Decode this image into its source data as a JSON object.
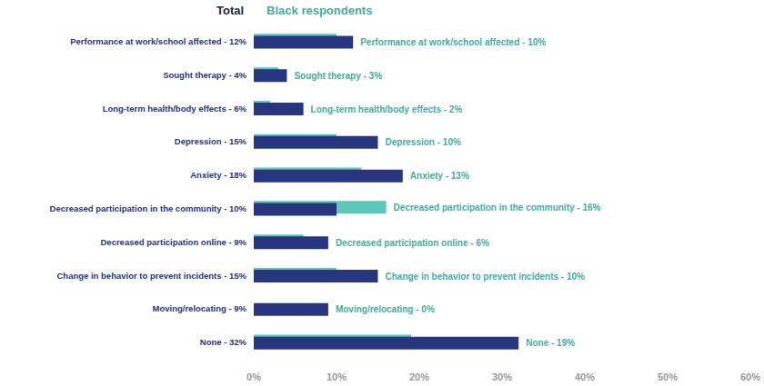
{
  "chart_data": {
    "type": "bar",
    "orientation": "horizontal",
    "categories": [
      "Performance at work/school affected - 12%",
      "Sought therapy - 4%",
      "Long-term health/body effects - 6%",
      "Depression - 15%",
      "Anxiety - 18%",
      "Decreased participation in the community - 10%",
      "Decreased participation online - 9%",
      "Change in behavior to prevent incidents - 15%",
      "Moving/relocating - 9%",
      "None - 32%"
    ],
    "series": [
      {
        "name": "Black respondents",
        "color": "#5cc6b8",
        "values": [
          10,
          3,
          2,
          10,
          13,
          16,
          6,
          10,
          0,
          19
        ],
        "value_labels": [
          "Performance at work/school affected - 10%",
          "Sought therapy - 3%",
          "Long-term health/body effects - 2%",
          "Depression - 10%",
          "Anxiety - 13%",
          "Decreased participation in the community - 16%",
          "Decreased participation online - 6%",
          "Change in behavior to prevent incidents - 10%",
          "Moving/relocating - 0%",
          "None - 19%"
        ]
      },
      {
        "name": "Total",
        "color": "#27367f",
        "values": [
          12,
          4,
          6,
          15,
          18,
          10,
          9,
          15,
          9,
          32
        ]
      }
    ],
    "xlim": [
      0,
      60
    ],
    "xticks": [
      {
        "value": 0,
        "label": "0%"
      },
      {
        "value": 10,
        "label": "10%"
      },
      {
        "value": 20,
        "label": "20%"
      },
      {
        "value": 30,
        "label": "30%"
      },
      {
        "value": 40,
        "label": "40%"
      },
      {
        "value": 50,
        "label": "50%"
      },
      {
        "value": 60,
        "label": "60%"
      }
    ],
    "grid": false,
    "legend": "top",
    "data_labels": true
  }
}
